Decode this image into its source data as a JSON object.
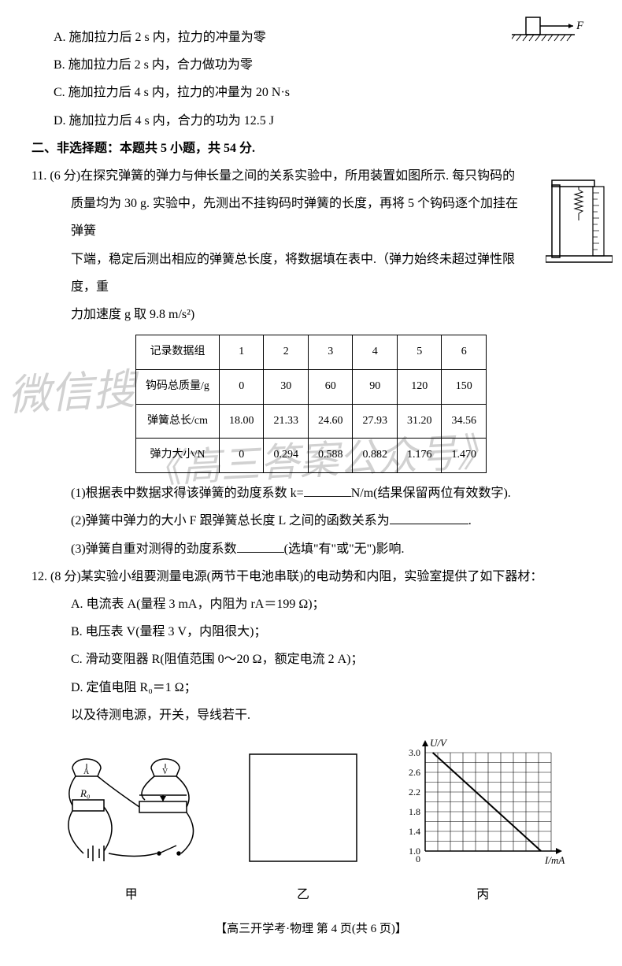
{
  "q10": {
    "A": "A. 施加拉力后 2 s 内，拉力的冲量为零",
    "B": "B. 施加拉力后 2 s 内，合力做功为零",
    "C": "C. 施加拉力后 4 s 内，拉力的冲量为 20 N·s",
    "D": "D. 施加拉力后 4 s 内，合力的功为 12.5 J",
    "force_label": "F"
  },
  "sec2": "二、非选择题：本题共 5 小题，共 54 分.",
  "q11": {
    "stem1": "11. (6 分)在探究弹簧的弹力与伸长量之间的关系实验中，所用装置如图所示. 每只钩码的",
    "stem2": "质量均为 30 g. 实验中，先测出不挂钩码时弹簧的长度，再将 5 个钩码逐个加挂在弹簧",
    "stem3": "下端，稳定后测出相应的弹簧总长度，将数据填在表中.（弹力始终未超过弹性限度，重",
    "stem4": "力加速度 g 取 9.8 m/s²)",
    "table": {
      "rows": [
        [
          "记录数据组",
          "1",
          "2",
          "3",
          "4",
          "5",
          "6"
        ],
        [
          "钩码总质量/g",
          "0",
          "30",
          "60",
          "90",
          "120",
          "150"
        ],
        [
          "弹簧总长/cm",
          "18.00",
          "21.33",
          "24.60",
          "27.93",
          "31.20",
          "34.56"
        ],
        [
          "弹力大小/N",
          "0",
          "0.294",
          "0.588",
          "0.882",
          "1.176",
          "1.470"
        ]
      ]
    },
    "p1a": "(1)根据表中数据求得该弹簧的劲度系数 k=",
    "p1b": "N/m(结果保留两位有效数字).",
    "p2a": "(2)弹簧中弹力的大小 F 跟弹簧总长度 L 之间的函数关系为",
    "p2b": ".",
    "p3a": "(3)弹簧自重对测得的劲度系数",
    "p3b": "(选填\"有\"或\"无\")影响."
  },
  "q12": {
    "stem": "12. (8 分)某实验小组要测量电源(两节干电池串联)的电动势和内阻，实验室提供了如下器材：",
    "A": "A. 电流表 A(量程 3 mA，内阻为 rA＝199 Ω)；",
    "B": "B. 电压表 V(量程 3 V，内阻很大)；",
    "C": "C. 滑动变阻器 R(阻值范围 0～20 Ω，额定电流 2 A)；",
    "D": "D. 定值电阻 R₀＝1 Ω；",
    "E": "以及待测电源，开关，导线若干.",
    "caps": {
      "jia": "甲",
      "yi": "乙",
      "bing": "丙"
    }
  },
  "graph": {
    "ylabel": "U/V",
    "xlabel": "I/mA",
    "ylim": [
      1.0,
      3.0
    ],
    "ytick": [
      1.0,
      1.4,
      1.8,
      2.2,
      2.6,
      3.0
    ],
    "xlim": [
      0,
      2.5
    ],
    "bg": "#ffffff",
    "grid": "#000000",
    "line_points": [
      [
        0.15,
        3.0
      ],
      [
        2.3,
        1.0
      ]
    ],
    "line_color": "#000000"
  },
  "footer": "【高三开学考·物理 第 4 页(共 6 页)】",
  "watermarks": {
    "w1": "微信搜",
    "w2": "《高三答案公众号》"
  }
}
